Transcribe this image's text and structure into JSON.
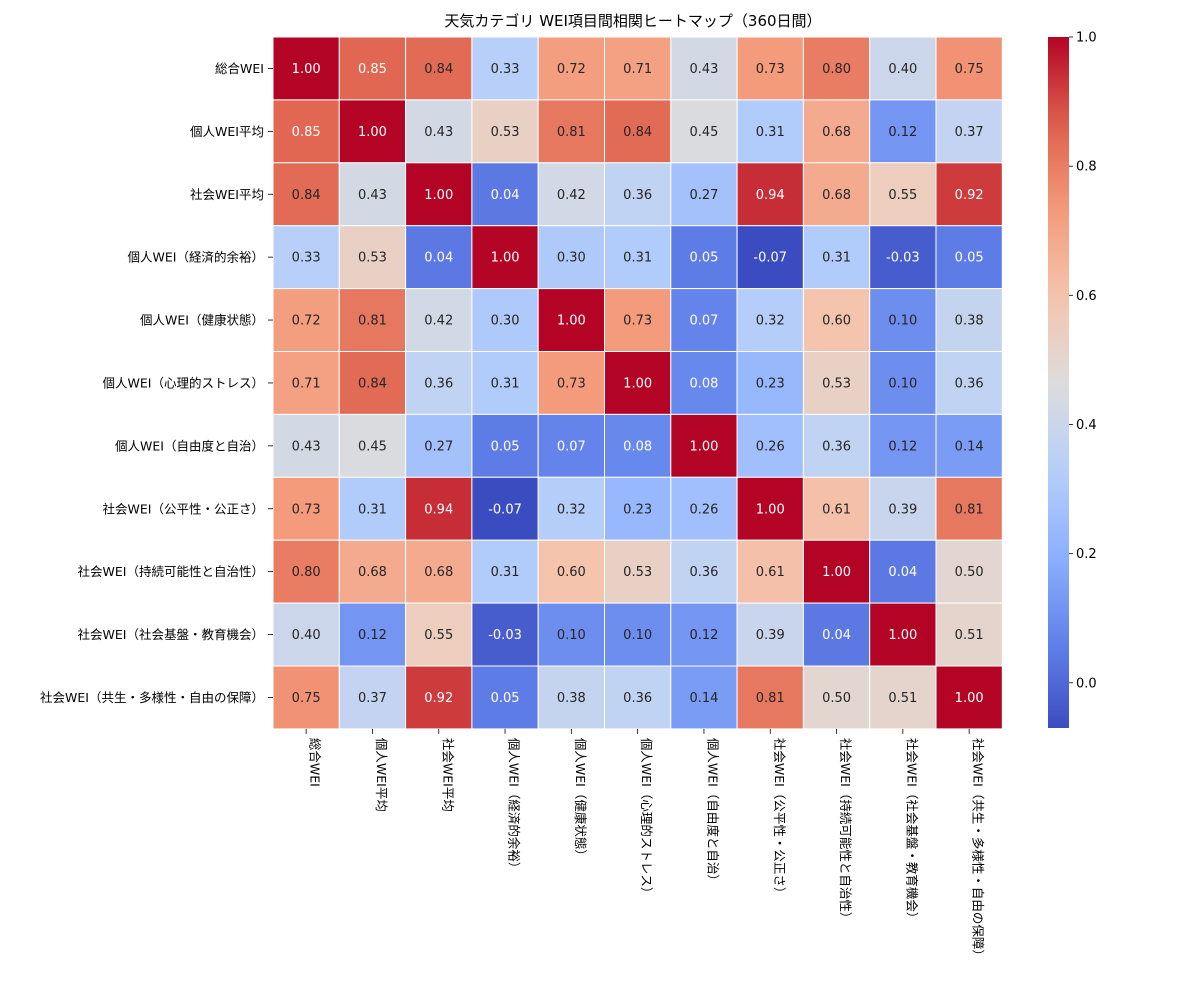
{
  "chart_data": {
    "type": "heatmap",
    "title": "天気カテゴリ WEI項目間相関ヒートマップ（360日間）",
    "labels": [
      "総合WEI",
      "個人WEI平均",
      "社会WEI平均",
      "個人WEI（経済的余裕）",
      "個人WEI（健康状態）",
      "個人WEI（心理的ストレス）",
      "個人WEI（自由度と自治）",
      "社会WEI（公平性・公正さ）",
      "社会WEI（持続可能性と自治性）",
      "社会WEI（社会基盤・教育機会）",
      "社会WEI（共生・多様性・自由の保障）"
    ],
    "matrix": [
      [
        1.0,
        0.85,
        0.84,
        0.33,
        0.72,
        0.71,
        0.43,
        0.73,
        0.8,
        0.4,
        0.75
      ],
      [
        0.85,
        1.0,
        0.43,
        0.53,
        0.81,
        0.84,
        0.45,
        0.31,
        0.68,
        0.12,
        0.37
      ],
      [
        0.84,
        0.43,
        1.0,
        0.04,
        0.42,
        0.36,
        0.27,
        0.94,
        0.68,
        0.55,
        0.92
      ],
      [
        0.33,
        0.53,
        0.04,
        1.0,
        0.3,
        0.31,
        0.05,
        -0.07,
        0.31,
        -0.03,
        0.05
      ],
      [
        0.72,
        0.81,
        0.42,
        0.3,
        1.0,
        0.73,
        0.07,
        0.32,
        0.6,
        0.1,
        0.38
      ],
      [
        0.71,
        0.84,
        0.36,
        0.31,
        0.73,
        1.0,
        0.08,
        0.23,
        0.53,
        0.1,
        0.36
      ],
      [
        0.43,
        0.45,
        0.27,
        0.05,
        0.07,
        0.08,
        1.0,
        0.26,
        0.36,
        0.12,
        0.14
      ],
      [
        0.73,
        0.31,
        0.94,
        -0.07,
        0.32,
        0.23,
        0.26,
        1.0,
        0.61,
        0.39,
        0.81
      ],
      [
        0.8,
        0.68,
        0.68,
        0.31,
        0.6,
        0.53,
        0.36,
        0.61,
        1.0,
        0.04,
        0.5
      ],
      [
        0.4,
        0.12,
        0.55,
        -0.03,
        0.1,
        0.1,
        0.12,
        0.39,
        0.04,
        1.0,
        0.51
      ],
      [
        0.75,
        0.37,
        0.92,
        0.05,
        0.38,
        0.36,
        0.14,
        0.81,
        0.5,
        0.51,
        1.0
      ]
    ],
    "colormap": "coolwarm",
    "vmin": -0.07,
    "vmax": 1.0,
    "colorbar_ticks": [
      0.0,
      0.2,
      0.4,
      0.6,
      0.8,
      1.0
    ],
    "colorbar_tick_labels": [
      "0.0",
      "0.2",
      "0.4",
      "0.6",
      "0.8",
      "1.0"
    ]
  }
}
